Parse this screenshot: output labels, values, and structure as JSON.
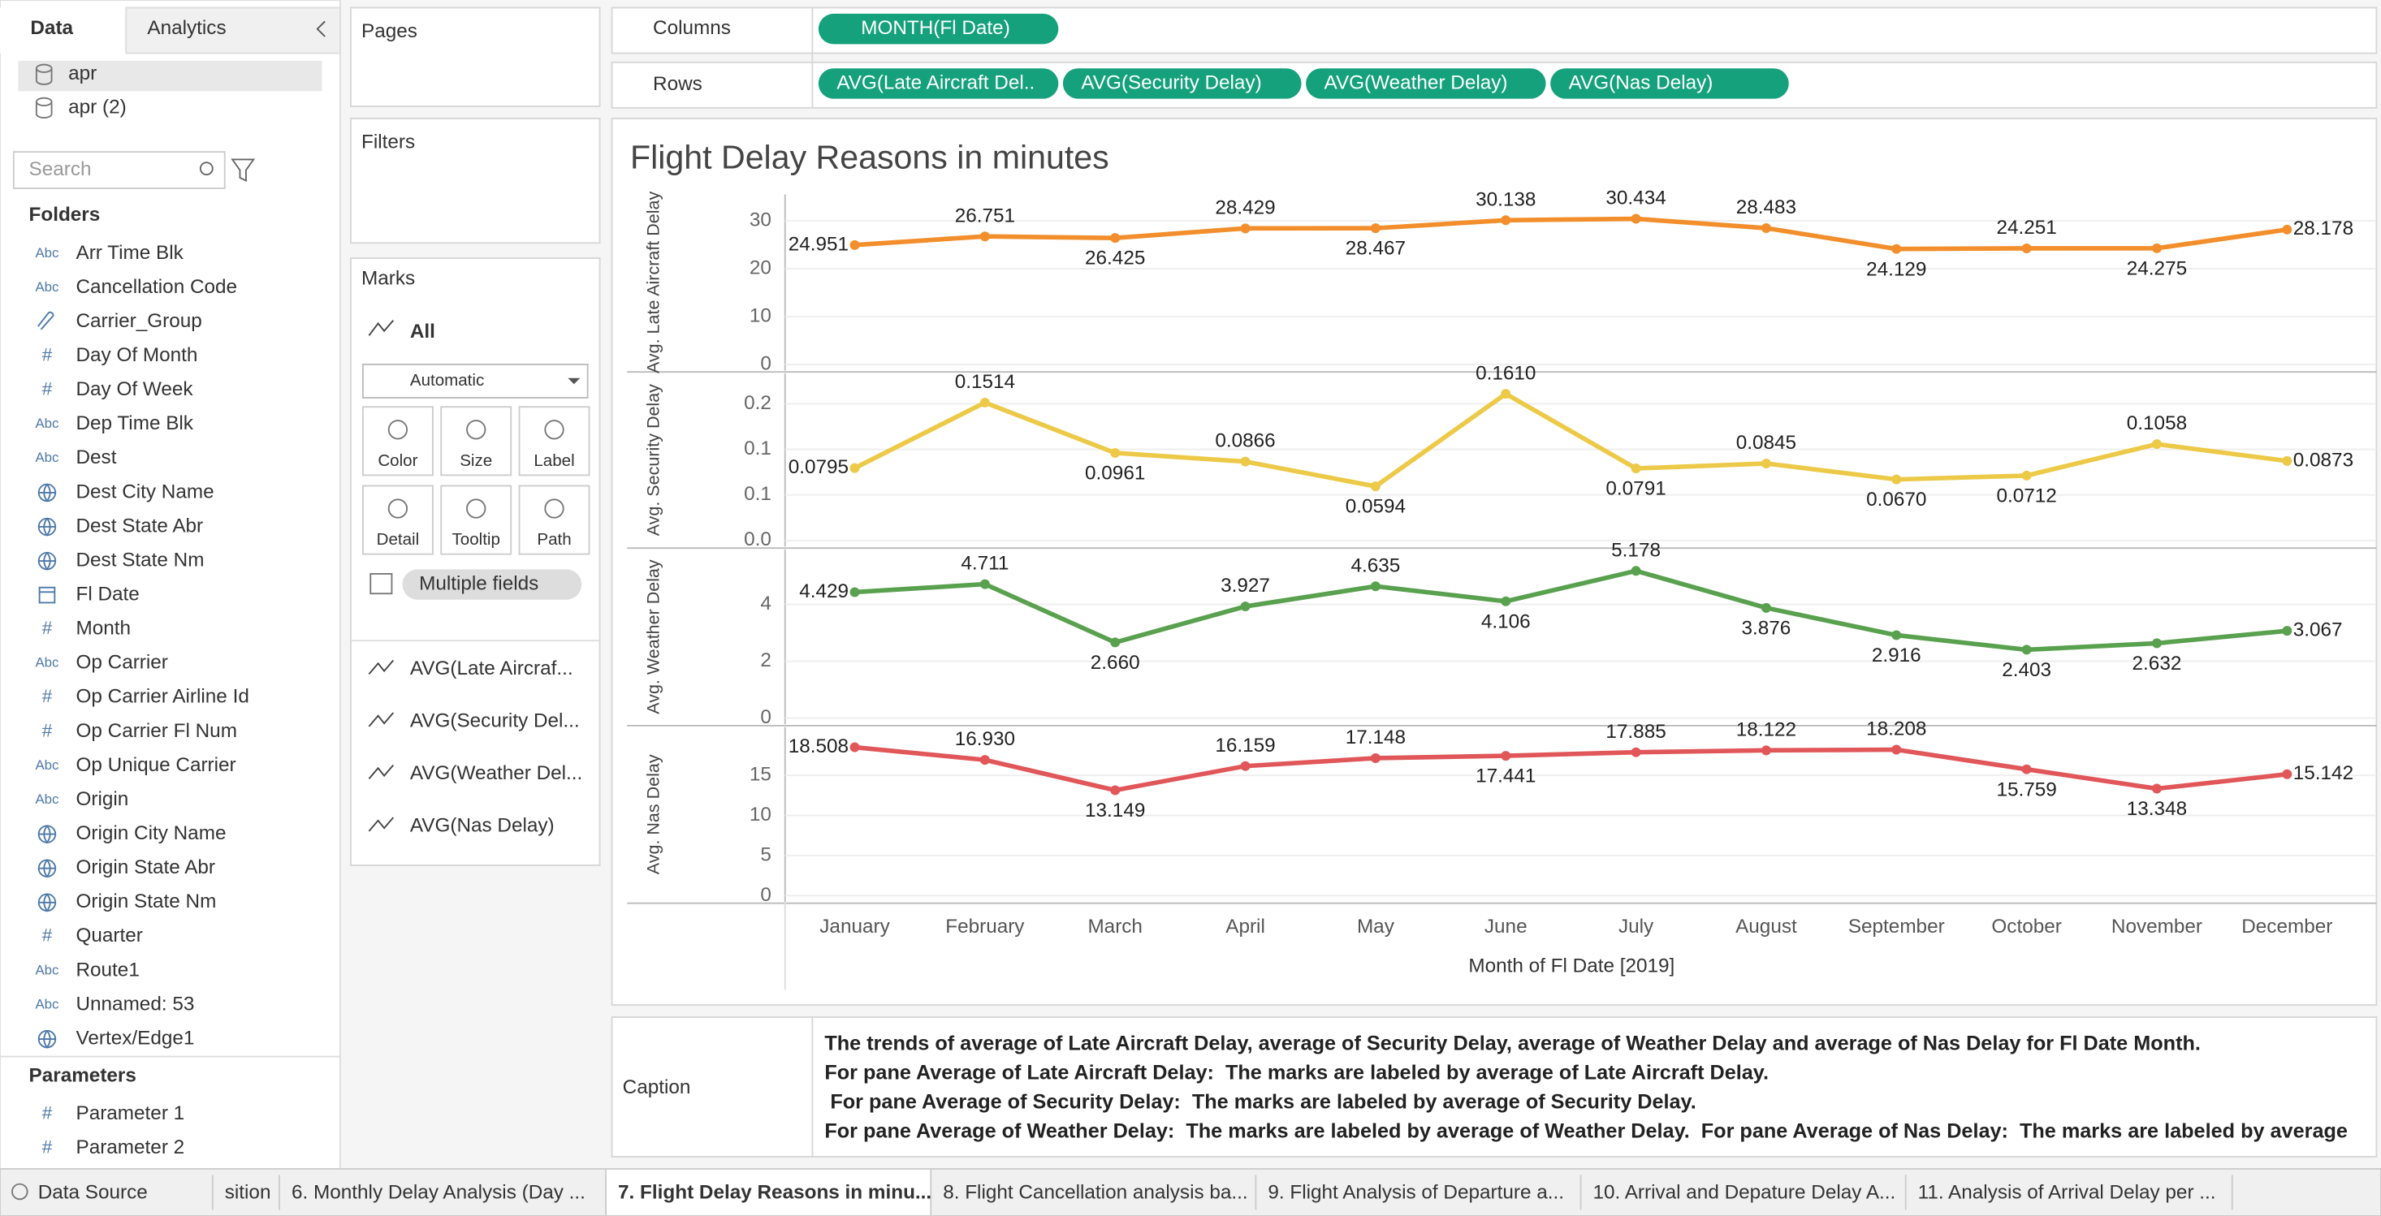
{
  "ui": {
    "side_tabs": [
      "Data",
      "Analytics"
    ],
    "sources": [
      "apr",
      "apr (2)"
    ],
    "search": "Search",
    "folders_title": "Folders",
    "fields": [
      {
        "kind": "Abc",
        "name": "Arr Time Blk"
      },
      {
        "kind": "Abc",
        "name": "Cancellation Code"
      },
      {
        "kind": "group",
        "name": "Carrier_Group"
      },
      {
        "kind": "#",
        "name": "Day Of Month"
      },
      {
        "kind": "#",
        "name": "Day Of Week"
      },
      {
        "kind": "Abc",
        "name": "Dep Time Blk"
      },
      {
        "kind": "Abc",
        "name": "Dest"
      },
      {
        "kind": "geo",
        "name": "Dest City Name"
      },
      {
        "kind": "geo",
        "name": "Dest State Abr"
      },
      {
        "kind": "geo",
        "name": "Dest State Nm"
      },
      {
        "kind": "date",
        "name": "Fl Date"
      },
      {
        "kind": "#",
        "name": "Month"
      },
      {
        "kind": "Abc",
        "name": "Op Carrier"
      },
      {
        "kind": "#",
        "name": "Op Carrier Airline Id"
      },
      {
        "kind": "#",
        "name": "Op Carrier Fl Num"
      },
      {
        "kind": "Abc",
        "name": "Op Unique Carrier"
      },
      {
        "kind": "Abc",
        "name": "Origin"
      },
      {
        "kind": "geo",
        "name": "Origin City Name"
      },
      {
        "kind": "geo",
        "name": "Origin State Abr"
      },
      {
        "kind": "geo",
        "name": "Origin State Nm"
      },
      {
        "kind": "#",
        "name": "Quarter"
      },
      {
        "kind": "Abc",
        "name": "Route1"
      },
      {
        "kind": "Abc",
        "name": "Unnamed: 53"
      },
      {
        "kind": "geo",
        "name": "Vertex/Edge1"
      }
    ],
    "parameters_title": "Parameters",
    "parameters": [
      "Parameter 1",
      "Parameter 2"
    ],
    "pages": "Pages",
    "filters": "Filters",
    "marks": "Marks",
    "marks_all": "All",
    "marks_type": "Automatic",
    "mark_buttons": [
      "Color",
      "Size",
      "Label",
      "Detail",
      "Tooltip",
      "Path"
    ],
    "multiple_fields": "Multiple fields",
    "mark_measures": [
      "AVG(Late Aircraf...",
      "AVG(Security Del...",
      "AVG(Weather Del...",
      "AVG(Nas Delay)"
    ],
    "columns_label": "Columns",
    "columns_pills": [
      "MONTH(Fl Date)"
    ],
    "rows_label": "Rows",
    "rows_pills": [
      "AVG(Late Aircraft Del..",
      "AVG(Security Delay)",
      "AVG(Weather Delay)",
      "AVG(Nas Delay)"
    ],
    "caption_label": "Caption",
    "caption_lines": [
      "The trends of average of Late Aircraft Delay, average of Security Delay, average of Weather Delay and average of Nas Delay for Fl Date Month.",
      "For pane Average of Late Aircraft Delay:  The marks are labeled by average of Late Aircraft Delay.",
      " For pane Average of Security Delay:  The marks are labeled by average of Security Delay.",
      "For pane Average of Weather Delay:  The marks are labeled by average of Weather Delay.  For pane Average of Nas Delay:  The marks are labeled by average"
    ],
    "tabs": [
      "Data Source",
      "sition",
      "6. Monthly Delay Analysis (Day ...",
      "7. Flight Delay Reasons in minu...",
      "8. Flight Cancellation analysis ba...",
      "9. Flight Analysis of Departure a...",
      "10. Arrival and Depature Delay A...",
      "11. Analysis of Arrival Delay per ..."
    ],
    "active_tab": 3
  },
  "chart_data": [
    {
      "type": "line",
      "title": "Flight Delay Reasons in minutes",
      "ylabel": "Avg. Late Aircraft Delay",
      "color": "#f28e2b",
      "values": [
        24.951,
        26.751,
        26.425,
        28.429,
        28.467,
        30.138,
        30.434,
        28.483,
        24.129,
        24.251,
        24.275,
        28.178
      ],
      "value_labels": [
        "24.951",
        "26.751",
        "26.425",
        "28.429",
        "28.467",
        "30.138",
        "30.434",
        "28.483",
        "24.129",
        "24.251",
        "24.275",
        "28.178"
      ],
      "ylim": [
        0,
        33
      ],
      "yticks": [
        0,
        10,
        20,
        30
      ],
      "grid": true
    },
    {
      "type": "line",
      "ylabel": "Avg. Security Delay",
      "color": "#edc948",
      "values": [
        0.0795,
        0.1514,
        0.0961,
        0.0866,
        0.0594,
        0.161,
        0.0791,
        0.0845,
        0.067,
        0.0712,
        0.1058,
        0.0873
      ],
      "value_labels": [
        "0.0795",
        "0.1514",
        "0.0961",
        "0.0866",
        "0.0594",
        "0.1610",
        "0.0791",
        "0.0845",
        "0.0670",
        "0.0712",
        "0.1058",
        "0.0873"
      ],
      "ylim": [
        0,
        0.17
      ],
      "yticks": [
        {
          "value": 0,
          "label": "0.0"
        },
        {
          "value": 0.05,
          "label": "0.1"
        },
        {
          "value": 0.1,
          "label": "0.1"
        },
        {
          "value": 0.15,
          "label": "0.2"
        }
      ],
      "grid": true
    },
    {
      "type": "line",
      "ylabel": "Avg. Weather Delay",
      "color": "#59a14f",
      "values": [
        4.429,
        4.711,
        2.66,
        3.927,
        4.635,
        4.106,
        5.178,
        3.876,
        2.916,
        2.403,
        2.632,
        3.067
      ],
      "value_labels": [
        "4.429",
        "4.711",
        "2.660",
        "3.927",
        "4.635",
        "4.106",
        "5.178",
        "3.876",
        "2.916",
        "2.403",
        "2.632",
        "3.067"
      ],
      "ylim": [
        0,
        5.5
      ],
      "yticks": [
        0,
        2,
        4
      ],
      "grid": true
    },
    {
      "type": "line",
      "ylabel": "Avg. Nas Delay",
      "color": "#e15759",
      "xlabel": "Month of Fl Date [2019]",
      "categories": [
        "January",
        "February",
        "March",
        "April",
        "May",
        "June",
        "July",
        "August",
        "September",
        "October",
        "November",
        "December"
      ],
      "values": [
        18.508,
        16.93,
        13.149,
        16.159,
        17.148,
        17.441,
        17.885,
        18.122,
        18.208,
        15.759,
        13.348,
        15.142
      ],
      "value_labels": [
        "18.508",
        "16.930",
        "13.149",
        "16.159",
        "17.148",
        "17.441",
        "17.885",
        "18.122",
        "18.208",
        "15.759",
        "13.348",
        "15.142"
      ],
      "ylim": [
        0,
        19.5
      ],
      "yticks": [
        0,
        5,
        10,
        15
      ],
      "grid": true
    }
  ]
}
